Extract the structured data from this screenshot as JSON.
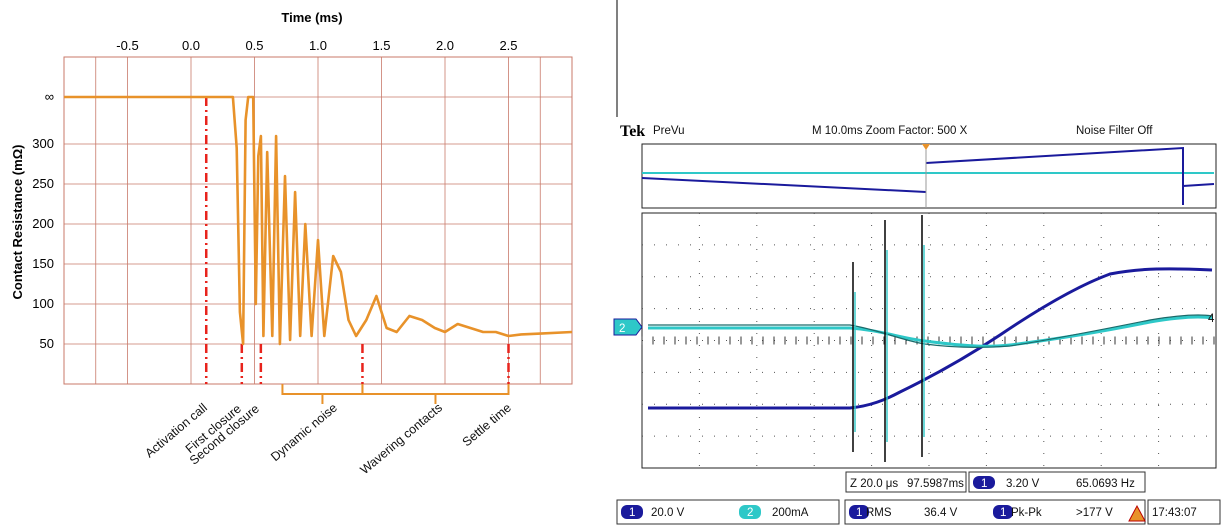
{
  "chart_data": [
    {
      "type": "line",
      "title": "",
      "xlabel": "Time (ms)",
      "ylabel": "Contact Resistance (mΩ)",
      "x_ticks": [
        "-0.5",
        "0.0",
        "0.5",
        "1.0",
        "1.5",
        "2.0",
        "2.5"
      ],
      "y_ticks": [
        "∞",
        "300",
        "250",
        "200",
        "150",
        "100",
        "50"
      ],
      "xlim": [
        -1.0,
        3.0
      ],
      "grid": true,
      "line_color": "#e8922a",
      "marker_color": "#e8231c",
      "series": [
        {
          "x": [
            -1.0,
            0.3,
            0.33,
            0.36,
            0.385,
            0.41,
            0.43,
            0.45,
            0.47,
            0.49,
            0.51,
            0.53,
            0.55,
            0.57,
            0.6,
            0.64,
            0.67,
            0.7,
            0.74,
            0.78,
            0.82,
            0.86,
            0.9,
            0.95,
            1.0,
            1.05,
            1.12,
            1.18,
            1.24,
            1.3,
            1.38,
            1.46,
            1.54,
            1.62,
            1.72,
            1.82,
            1.92,
            2.0,
            2.1,
            2.2,
            2.3,
            2.4,
            2.5,
            2.6,
            2.75,
            3.0
          ],
          "y": [
            "inf",
            "inf",
            "inf",
            295,
            90,
            50,
            330,
            "inf",
            "inf",
            "inf",
            100,
            285,
            310,
            60,
            290,
            60,
            310,
            50,
            260,
            55,
            240,
            60,
            200,
            60,
            180,
            60,
            160,
            140,
            80,
            60,
            80,
            110,
            70,
            65,
            85,
            80,
            70,
            65,
            75,
            70,
            65,
            65,
            60,
            62,
            63,
            65
          ]
        }
      ],
      "markers": [
        {
          "label": "Activation call",
          "x": 0.12,
          "from": "inf",
          "to": 0
        },
        {
          "label": "First closure",
          "x": 0.4,
          "from": 50,
          "to": 0
        },
        {
          "label": "Second closure",
          "x": 0.55,
          "from": 50,
          "to": 0
        },
        {
          "label": "",
          "x": 1.35,
          "from": 50,
          "to": 0
        },
        {
          "label": "",
          "x": 2.5,
          "from": 50,
          "to": 0
        }
      ],
      "brackets": [
        {
          "label": "Dynamic noise",
          "x_from": 0.72,
          "x_to": 1.35
        },
        {
          "label": "Wavering contacts",
          "x_from": 1.35,
          "x_to": 2.5
        }
      ],
      "annotations": [
        "Activation call",
        "First closure",
        "Second closure",
        "Dynamic noise",
        "Wavering contacts",
        "Settle time"
      ]
    },
    {
      "type": "line",
      "title": "",
      "header": {
        "brand": "Tek",
        "mode": "PreVu",
        "timebase": "M 10.0ms  Zoom Factor: 500 X",
        "filter": "Noise Filter Off"
      },
      "grid": true,
      "channels": [
        {
          "id": "1",
          "scale": "20.0 V",
          "color": "#1a1a9c"
        },
        {
          "id": "2",
          "scale": "200mA",
          "color": "#2ec8c8"
        }
      ],
      "zoom_readout": {
        "label": "Z 20.0 μs",
        "value": "97.5987ms"
      },
      "trigger_readout": {
        "channel": "1",
        "level": "3.20 V",
        "frequency": "65.0693 Hz"
      },
      "measurements": [
        {
          "channel": "1",
          "name": "RMS",
          "value": "36.4 V"
        },
        {
          "channel": "1",
          "name": "Pk-Pk",
          "value": ">177 V"
        }
      ],
      "clock": "17:43:07",
      "markers": [
        "2",
        "4"
      ]
    }
  ]
}
